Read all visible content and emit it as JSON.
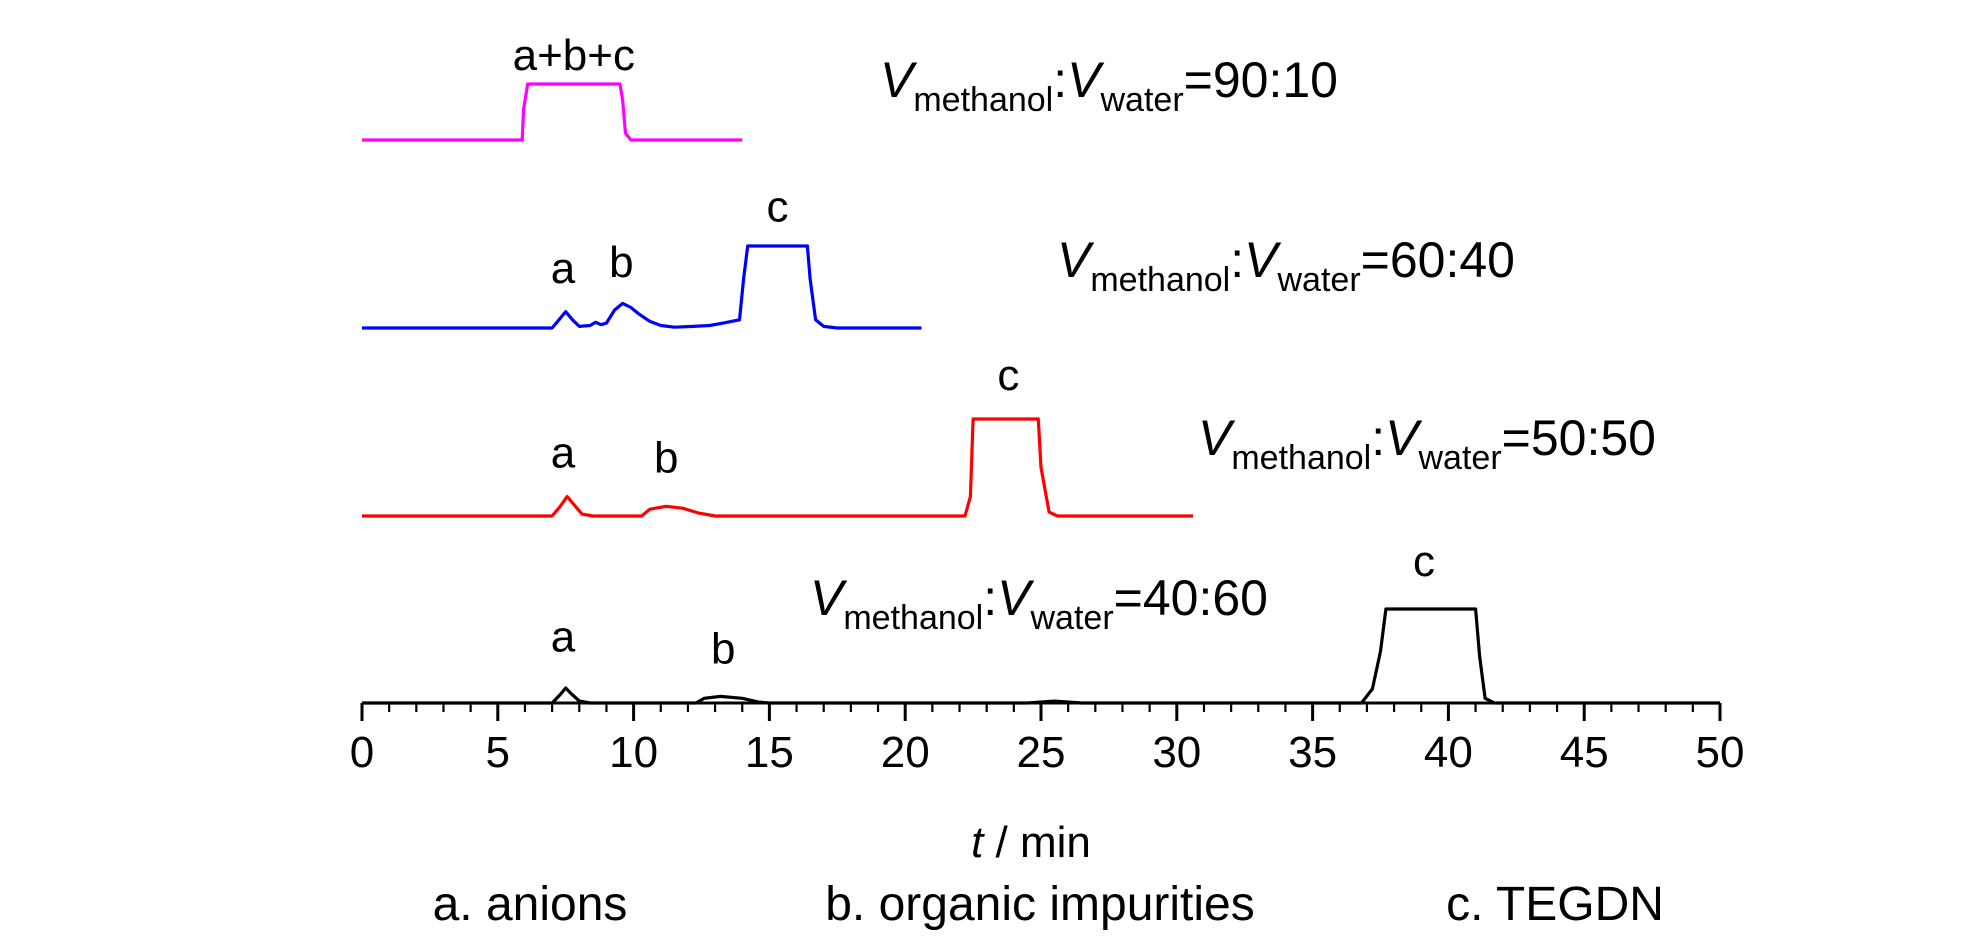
{
  "chart_data": {
    "type": "line",
    "xlabel": {
      "italic": "t",
      "rest": " / min"
    },
    "xlim": [
      0,
      50
    ],
    "x_major_ticks": [
      0,
      5,
      10,
      15,
      20,
      25,
      30,
      35,
      40,
      45,
      50
    ],
    "x_minor_step": 1,
    "grid": false,
    "series": [
      {
        "name": "V methanol : V water = 90:10",
        "color": "#ff00ff",
        "ratio": "=90:10",
        "label": {
          "V": "V",
          "sub1": "methanol",
          "colon": ":",
          "sub2": "water"
        },
        "x_end": 14.0,
        "points": [
          [
            0,
            0
          ],
          [
            5.9,
            0
          ],
          [
            5.95,
            0.55
          ],
          [
            6.1,
            1
          ],
          [
            9.5,
            1
          ],
          [
            9.6,
            0.7
          ],
          [
            9.7,
            0.12
          ],
          [
            9.9,
            0
          ],
          [
            14.0,
            0
          ]
        ],
        "peak_labels": [
          {
            "text": "a+b+c",
            "x": 7.8,
            "y": 1.25
          }
        ]
      },
      {
        "name": "V methanol : V water = 60:40",
        "color": "#0000ff",
        "ratio": "=60:40",
        "label": {
          "V": "V",
          "sub1": "methanol",
          "colon": ":",
          "sub2": "water"
        },
        "x_end": 20.6,
        "points": [
          [
            0,
            0
          ],
          [
            7.0,
            0
          ],
          [
            7.3,
            0.12
          ],
          [
            7.5,
            0.2
          ],
          [
            7.75,
            0.1
          ],
          [
            8.0,
            0.02
          ],
          [
            8.4,
            0.03
          ],
          [
            8.6,
            0.07
          ],
          [
            8.8,
            0.04
          ],
          [
            9.0,
            0.06
          ],
          [
            9.3,
            0.22
          ],
          [
            9.6,
            0.3
          ],
          [
            9.9,
            0.25
          ],
          [
            10.2,
            0.17
          ],
          [
            10.6,
            0.08
          ],
          [
            11.0,
            0.03
          ],
          [
            11.5,
            0.01
          ],
          [
            12.2,
            0.02
          ],
          [
            12.8,
            0.03
          ],
          [
            13.3,
            0.06
          ],
          [
            13.9,
            0.1
          ],
          [
            14.05,
            0.6
          ],
          [
            14.2,
            1
          ],
          [
            16.4,
            1
          ],
          [
            16.5,
            0.6
          ],
          [
            16.7,
            0.1
          ],
          [
            17.0,
            0.02
          ],
          [
            17.5,
            0
          ],
          [
            20.6,
            0
          ]
        ],
        "peak_labels": [
          {
            "text": "a",
            "x": 7.4,
            "y": 0.55
          },
          {
            "text": "b",
            "x": 9.55,
            "y": 0.62
          },
          {
            "text": "c",
            "x": 15.3,
            "y": 1.3
          }
        ]
      },
      {
        "name": "V methanol : V water = 50:50",
        "color": "#ff0000",
        "ratio": "=50:50",
        "label": {
          "V": "V",
          "sub1": "methanol",
          "colon": ":",
          "sub2": "water"
        },
        "x_end": 30.6,
        "points": [
          [
            0,
            0
          ],
          [
            7.0,
            0
          ],
          [
            7.3,
            0.1
          ],
          [
            7.55,
            0.2
          ],
          [
            7.8,
            0.12
          ],
          [
            8.1,
            0.02
          ],
          [
            8.5,
            0
          ],
          [
            10.3,
            0
          ],
          [
            10.6,
            0.07
          ],
          [
            11.2,
            0.1
          ],
          [
            11.8,
            0.08
          ],
          [
            12.4,
            0.03
          ],
          [
            13.0,
            0
          ],
          [
            22.2,
            0
          ],
          [
            22.4,
            0.2
          ],
          [
            22.5,
            1
          ],
          [
            24.9,
            1
          ],
          [
            25.0,
            0.5
          ],
          [
            25.3,
            0.04
          ],
          [
            25.6,
            0
          ],
          [
            30.6,
            0
          ]
        ],
        "peak_labels": [
          {
            "text": "a",
            "x": 7.4,
            "y": 0.5
          },
          {
            "text": "b",
            "x": 11.2,
            "y": 0.45
          },
          {
            "text": "c",
            "x": 23.8,
            "y": 1.3
          }
        ]
      },
      {
        "name": "V methanol : V water = 40:60",
        "color": "#000000",
        "ratio": "=40:60",
        "label": {
          "V": "V",
          "sub1": "methanol",
          "colon": ":",
          "sub2": "water"
        },
        "x_end": 50.0,
        "points": [
          [
            0,
            0
          ],
          [
            7.0,
            0
          ],
          [
            7.3,
            0.09
          ],
          [
            7.5,
            0.16
          ],
          [
            7.7,
            0.1
          ],
          [
            8.0,
            0.02
          ],
          [
            8.4,
            0
          ],
          [
            12.3,
            0
          ],
          [
            12.6,
            0.05
          ],
          [
            13.2,
            0.07
          ],
          [
            14.0,
            0.05
          ],
          [
            14.6,
            0.01
          ],
          [
            15.0,
            0
          ],
          [
            24.5,
            0
          ],
          [
            25.5,
            0.02
          ],
          [
            26.5,
            0
          ],
          [
            36.8,
            0
          ],
          [
            37.2,
            0.15
          ],
          [
            37.5,
            0.55
          ],
          [
            37.7,
            1
          ],
          [
            41.0,
            1
          ],
          [
            41.15,
            0.5
          ],
          [
            41.35,
            0.05
          ],
          [
            41.7,
            0
          ],
          [
            50.0,
            0
          ]
        ],
        "peak_labels": [
          {
            "text": "a",
            "x": 7.4,
            "y": 0.55
          },
          {
            "text": "b",
            "x": 13.3,
            "y": 0.42
          },
          {
            "text": "c",
            "x": 39.1,
            "y": 1.35
          }
        ]
      }
    ],
    "legend_items": [
      "a. anions",
      "b. organic impurities",
      "c. TEGDN"
    ]
  }
}
